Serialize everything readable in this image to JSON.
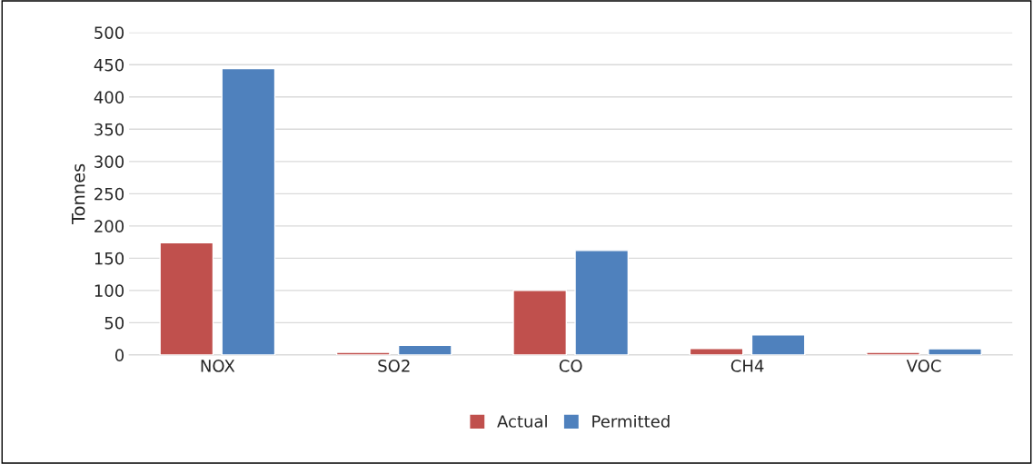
{
  "chart_data": {
    "type": "bar",
    "ylabel": "Tonnes",
    "categories": [
      "NOX",
      "SO2",
      "CO",
      "CH4",
      "VOC"
    ],
    "series": [
      {
        "name": "Actual",
        "color": "#c0504d",
        "values": [
          174,
          4,
          100,
          10,
          4
        ]
      },
      {
        "name": "Permitted",
        "color": "#4f81bd",
        "values": [
          444,
          15,
          162,
          31,
          9.5
        ]
      }
    ],
    "ylim": [
      0,
      500
    ],
    "yticks": [
      0,
      50,
      100,
      150,
      200,
      250,
      300,
      350,
      400,
      450,
      500
    ],
    "grid": "y",
    "legend": "bottom"
  }
}
